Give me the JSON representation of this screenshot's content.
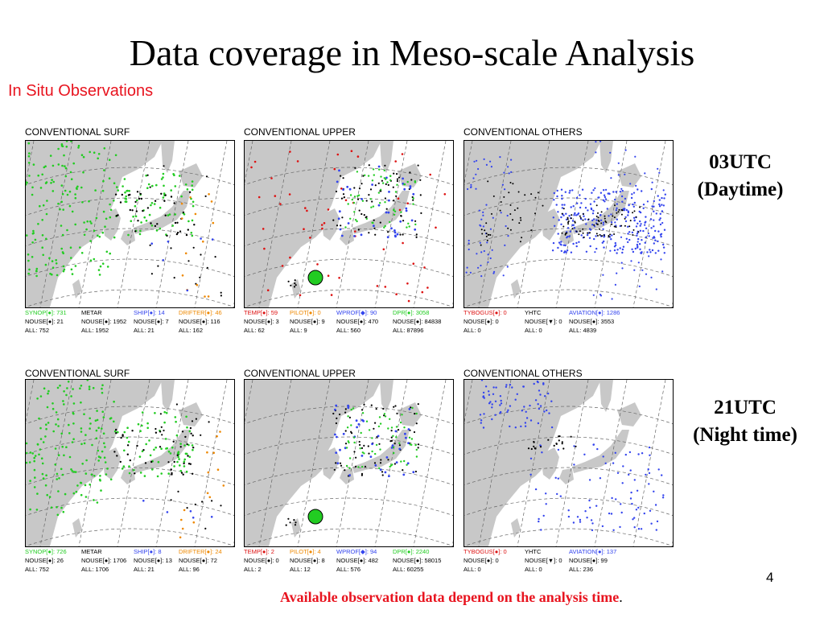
{
  "title": "Data coverage in Meso-scale Analysis",
  "subtitle": "In Situ Observations",
  "rows": [
    {
      "time_label": "03UTC",
      "time_desc": "(Daytime)",
      "panels": [
        {
          "label": "CONVENTIONAL SURF",
          "legend": [
            {
              "name": "SYNOP[●]: 731",
              "color": "#22cc22",
              "nouse": "NOUSE[●]: 21",
              "all": "ALL: 752"
            },
            {
              "name": "METAR",
              "color": "#000000",
              "nouse": "NOUSE[●]: 1952",
              "all": "ALL: 1952"
            },
            {
              "name": "SHIP[●]: 14",
              "color": "#3344ee",
              "nouse": "NOUSE[●]: 7",
              "all": "ALL: 21"
            },
            {
              "name": "DRIFTER[●]: 46",
              "color": "#ee8800",
              "nouse": "NOUSE[●]: 116",
              "all": "ALL: 162"
            }
          ]
        },
        {
          "label": "CONVENTIONAL UPPER",
          "legend": [
            {
              "name": "TEMP[●]: 59",
              "color": "#dd1111",
              "nouse": "NOUSE[●]: 3",
              "all": "ALL: 62"
            },
            {
              "name": "PILOT[●]: 0",
              "color": "#ee8800",
              "nouse": "NOUSE[●]: 9",
              "all": "ALL: 9"
            },
            {
              "name": "WPROF[◆]: 90",
              "color": "#3344ee",
              "nouse": "NOUSE[●]: 470",
              "all": "ALL: 560"
            },
            {
              "name": "DPR[●]: 3058",
              "color": "#22cc22",
              "nouse": "NOUSE[●]: 84838",
              "all": "ALL: 87896"
            }
          ]
        },
        {
          "label": "CONVENTIONAL OTHERS",
          "legend": [
            {
              "name": "TYBOGUS[●]: 0",
              "color": "#dd1111",
              "nouse": "NOUSE[●]: 0",
              "all": "ALL: 0"
            },
            {
              "name": "YHTC",
              "color": "#000000",
              "nouse": "NOUSE[▼]: 0",
              "all": "ALL: 0"
            },
            {
              "name": "AVIATION[●]: 1286",
              "color": "#3344ee",
              "nouse": "NOUSE[●]: 3553",
              "all": "ALL: 4839"
            }
          ]
        }
      ]
    },
    {
      "time_label": "21UTC",
      "time_desc": "(Night time)",
      "panels": [
        {
          "label": "CONVENTIONAL SURF",
          "legend": [
            {
              "name": "SYNOP[●]: 726",
              "color": "#22cc22",
              "nouse": "NOUSE[●]: 26",
              "all": "ALL: 752"
            },
            {
              "name": "METAR",
              "color": "#000000",
              "nouse": "NOUSE[●]: 1706",
              "all": "ALL: 1706"
            },
            {
              "name": "SHIP[●]: 8",
              "color": "#3344ee",
              "nouse": "NOUSE[●]: 13",
              "all": "ALL: 21"
            },
            {
              "name": "DRIFTER[●]: 24",
              "color": "#ee8800",
              "nouse": "NOUSE[●]: 72",
              "all": "ALL: 96"
            }
          ]
        },
        {
          "label": "CONVENTIONAL UPPER",
          "legend": [
            {
              "name": "TEMP[●]: 2",
              "color": "#dd1111",
              "nouse": "NOUSE[●]: 0",
              "all": "ALL: 2"
            },
            {
              "name": "PILOT[●]: 4",
              "color": "#ee8800",
              "nouse": "NOUSE[●]: 8",
              "all": "ALL: 12"
            },
            {
              "name": "WPROF[◆]: 94",
              "color": "#3344ee",
              "nouse": "NOUSE[●]: 482",
              "all": "ALL: 576"
            },
            {
              "name": "DPR[●]: 2240",
              "color": "#22cc22",
              "nouse": "NOUSE[●]: 58015",
              "all": "ALL: 60255"
            }
          ]
        },
        {
          "label": "CONVENTIONAL OTHERS",
          "legend": [
            {
              "name": "TYBOGUS[●]: 0",
              "color": "#dd1111",
              "nouse": "NOUSE[●]: 0",
              "all": "ALL: 0"
            },
            {
              "name": "YHTC",
              "color": "#000000",
              "nouse": "NOUSE[▼]: 0",
              "all": "ALL: 0"
            },
            {
              "name": "AVIATION[●]: 137",
              "color": "#3344ee",
              "nouse": "NOUSE[●]: 99",
              "all": "ALL: 236"
            }
          ]
        }
      ]
    }
  ],
  "page_number": "4",
  "footer": "Available observation data depend on the analysis time",
  "footer_end": ".",
  "colors": {
    "title_accent": "#e8141f",
    "land": "#c8c8c8",
    "grid": "#666666"
  }
}
